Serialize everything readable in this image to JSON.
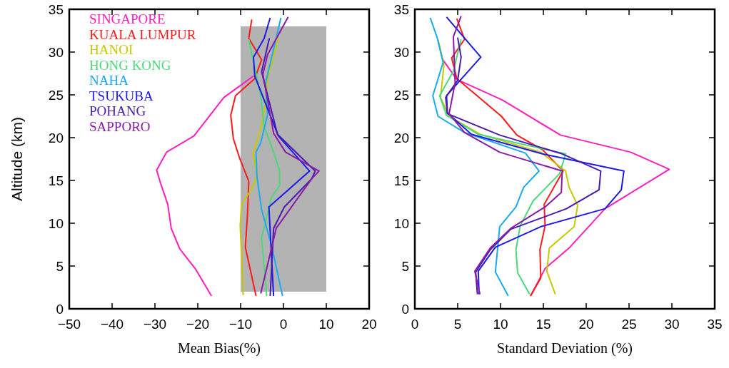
{
  "chart_data": [
    {
      "type": "line",
      "xlabel": "Mean Bias(%)",
      "ylabel": "Altitude (km)",
      "xlim": [
        -50,
        20
      ],
      "ylim": [
        0,
        35
      ],
      "xticks": [
        {
          "value": -50,
          "label": "−50"
        },
        {
          "value": -40,
          "label": "−40"
        },
        {
          "value": -30,
          "label": "−30"
        },
        {
          "value": -20,
          "label": "−20"
        },
        {
          "value": -10,
          "label": "−10"
        },
        0,
        10,
        20
      ],
      "yticks": [
        0,
        5,
        10,
        15,
        20,
        25,
        30,
        35
      ],
      "legend": "top left",
      "grid": false,
      "bands": [
        {
          "axis": "x",
          "from": -10,
          "to": 10,
          "color": "#b3b3b3"
        }
      ],
      "series": [
        {
          "name": "SINGAPORE",
          "color": "#ff1fbf",
          "x": [
            -16.8,
            -20.6,
            -24.2,
            -26.2,
            -27,
            -28.7,
            -29.6,
            -27.3,
            -20.9,
            -13.9,
            -7
          ],
          "values": [
            1.5,
            4.7,
            7,
            9.4,
            12.2,
            14.7,
            16.2,
            18.3,
            20.2,
            24.7,
            27.2
          ]
        },
        {
          "name": "KUALA LUMPUR",
          "color": "#ff1a1a",
          "x": [
            -6.4,
            -8.9,
            -8.4,
            -8.1,
            -10.3,
            -11.7,
            -12.3,
            -11.2,
            -6.7,
            -5.1,
            -8.1,
            -7.4
          ],
          "values": [
            1.5,
            7.2,
            11,
            14.9,
            17.7,
            19.9,
            22.6,
            24.9,
            26.9,
            29.1,
            31.6,
            33.8
          ]
        },
        {
          "name": "HANOI",
          "color": "#c8c800",
          "x": [
            -9.4,
            -10.1,
            -9.8,
            -7.3,
            -6.1,
            -7.1,
            -5.3,
            -4.2,
            -3.7,
            -1.2
          ],
          "values": [
            1.6,
            9.7,
            12.2,
            14.1,
            15.6,
            18.1,
            21.1,
            23.7,
            26.9,
            31.6
          ]
        },
        {
          "name": "HONG KONG",
          "color": "#4cd97a",
          "x": [
            -3.9,
            -5.1,
            -2.8,
            -0.9,
            -0.9,
            -2.3,
            -4.5,
            -5.3,
            -8.1
          ],
          "values": [
            1.5,
            8.3,
            13,
            14.4,
            16.1,
            18.3,
            21.3,
            24.9,
            31.5
          ]
        },
        {
          "name": "NAHA",
          "color": "#1aaaee",
          "x": [
            -0.2,
            -2.8,
            -5.1,
            -6.2,
            -6.4,
            -5.3,
            -3.7,
            -4.2,
            -0.6
          ],
          "values": [
            1.5,
            7.4,
            11.6,
            15.5,
            18.3,
            19.4,
            22.7,
            26.3,
            34
          ]
        },
        {
          "name": "TSUKUBA",
          "color": "#1a1aee",
          "x": [
            -2.3,
            -3.4,
            6.1,
            -1.2,
            -6.7,
            -7,
            -4.5,
            -3.1
          ],
          "values": [
            1.5,
            11.9,
            16.1,
            20.2,
            27.2,
            29.4,
            31.6,
            34
          ]
        },
        {
          "name": "POHANG",
          "color": "#4a1ab0",
          "x": [
            -3.1,
            -2.3,
            0.2,
            6.6,
            7.4,
            -1.4,
            -5.1,
            -3.3
          ],
          "values": [
            1.5,
            9.4,
            11.9,
            15.2,
            16.1,
            20.4,
            27.7,
            31.6
          ]
        },
        {
          "name": "SAPPORO",
          "color": "#8a1aa8",
          "x": [
            -5.3,
            -1.7,
            6.6,
            8.3,
            0.5,
            -2.3,
            -4.8,
            -3.7,
            1.1
          ],
          "values": [
            1.8,
            9.4,
            15.2,
            16.1,
            18.3,
            20.5,
            27.4,
            29.7,
            34.1
          ]
        }
      ]
    },
    {
      "type": "line",
      "xlabel": "Standard Deviation (%)",
      "xlim": [
        0,
        35
      ],
      "ylim": [
        0,
        35
      ],
      "xticks": [
        0,
        5,
        10,
        15,
        20,
        25,
        30,
        35
      ],
      "yticks": [
        0,
        5,
        10,
        15,
        20,
        25,
        30,
        35
      ],
      "grid": false,
      "series": [
        {
          "color": "#ff1fbf",
          "x": [
            13.5,
            15.2,
            18,
            22.2,
            29.7,
            25.2,
            17,
            10.2,
            4.9,
            3.2
          ],
          "values": [
            1.5,
            4.7,
            7.1,
            11.7,
            16.3,
            18.3,
            20.3,
            24.4,
            26.8,
            29.2
          ]
        },
        {
          "color": "#ff1a1a",
          "x": [
            13.5,
            14.7,
            14.6,
            15.2,
            15.1,
            17.3,
            14.9,
            11.9,
            10.1,
            4.9,
            4.3,
            5.8,
            4.9
          ],
          "values": [
            1.5,
            3.6,
            6.9,
            9.7,
            12.2,
            16.1,
            18.6,
            20.3,
            22.5,
            26.9,
            29.3,
            31.5,
            33.9
          ]
        },
        {
          "color": "#c8c800",
          "x": [
            16.4,
            15.4,
            15.7,
            18.6,
            19,
            18,
            17.6,
            14.7,
            7.6,
            4,
            3,
            3.4,
            2.7
          ],
          "values": [
            1.7,
            4.4,
            7.1,
            9.6,
            12.1,
            14.2,
            16.1,
            18.3,
            20.4,
            22.5,
            24.7,
            28.5,
            31.5
          ]
        },
        {
          "color": "#4cd97a",
          "x": [
            13.4,
            12,
            11.8,
            12.3,
            13.8,
            16.9,
            17.6,
            7.4,
            3.7,
            2.9,
            4.5,
            5.4
          ],
          "values": [
            1.7,
            4.2,
            6.9,
            9.7,
            12.6,
            15.8,
            18.1,
            20.4,
            22.6,
            24.9,
            27.8,
            31.5
          ]
        },
        {
          "color": "#1aaaee",
          "x": [
            10.9,
            9.4,
            9.9,
            11.8,
            12.7,
            14.5,
            12.9,
            5.8,
            2.7,
            2.1,
            3.3,
            2.6,
            1.8
          ],
          "values": [
            1.5,
            4.3,
            9.6,
            11.9,
            14.2,
            16.1,
            18.2,
            20.6,
            22.5,
            24.9,
            28.8,
            31.7,
            34
          ]
        },
        {
          "color": "#1a1aee",
          "x": [
            7.5,
            7.4,
            9.4,
            14.7,
            22.2,
            24.1,
            24.4,
            14.9,
            6.6,
            3.8,
            3.7,
            7.7,
            3.7
          ],
          "values": [
            1.7,
            4.4,
            7.2,
            9.6,
            11.7,
            13.9,
            16.1,
            18.1,
            20.4,
            22.9,
            24.9,
            29.4,
            34.1
          ]
        },
        {
          "color": "#4a1ab0",
          "x": [
            7.3,
            7.1,
            8.8,
            11.2,
            17.7,
            21.5,
            21.7,
            17.2,
            9.9,
            3.8,
            3.6,
            5,
            5.4,
            5
          ],
          "values": [
            1.7,
            4.3,
            6.9,
            9.3,
            11.7,
            13.9,
            16.1,
            18.1,
            20.3,
            22.8,
            24.7,
            26.7,
            29.4,
            31.7
          ]
        },
        {
          "color": "#8a1aa8",
          "x": [
            7.6,
            7,
            8.8,
            11.2,
            15.2,
            17.1,
            17.2,
            9.9,
            5.8,
            4,
            4.7,
            4.5,
            5.4
          ],
          "values": [
            1.7,
            4.4,
            7.1,
            9.4,
            11.9,
            13.6,
            16.1,
            18.3,
            20.6,
            22.8,
            26.4,
            31.8,
            34.2
          ]
        }
      ]
    }
  ]
}
